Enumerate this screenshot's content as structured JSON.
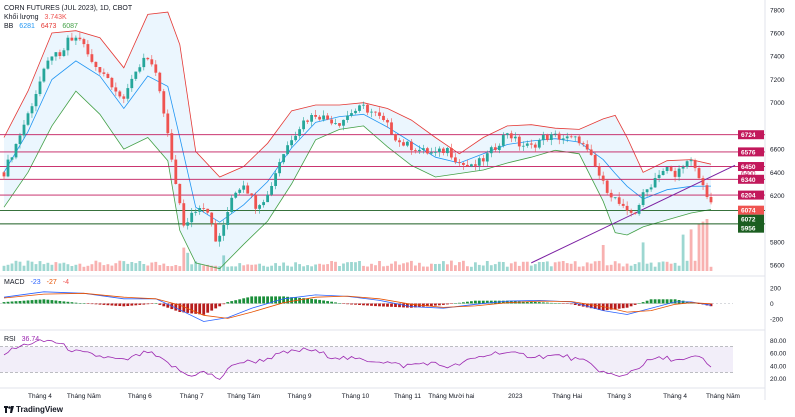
{
  "header": {
    "title": "CORN FUTURES (JUL 2023), 1D, CBOT",
    "volume_label": "Khối lượng",
    "volume_value": "3.743K",
    "bb_label": "BB",
    "bb_values": [
      "6281",
      "6473",
      "6087"
    ],
    "macd_label": "MACD",
    "macd_values": [
      "-23",
      "-27",
      "-4"
    ],
    "rsi_label": "RSI",
    "rsi_value": "36.74"
  },
  "branding": {
    "logo_text": "TradingView",
    "logo_icon": "tradingview-logo-icon"
  },
  "colors": {
    "up": "#26a69a",
    "down": "#ef5350",
    "bb_upper": "#e53935",
    "bb_lower": "#43a047",
    "bb_basis": "#2196f3",
    "bb_fill": "#e3f2fd",
    "resistance": "#c2185b",
    "support": "#1b5e20",
    "trendline": "#7b1fa2",
    "macd_line": "#2962ff",
    "signal_line": "#e65100",
    "rsi_line": "#9c27b0",
    "rsi_band": "#ede7f6"
  },
  "chart_data": {
    "type": "candlestick",
    "price_axis": {
      "min": 5550,
      "max": 7850,
      "ticks": [
        7800,
        7600,
        7400,
        7200,
        7000,
        6600,
        6400,
        6200,
        5800,
        5600
      ]
    },
    "price_path": [
      [
        0,
        6400
      ],
      [
        3,
        6640
      ],
      [
        6,
        6900
      ],
      [
        9,
        7180
      ],
      [
        12,
        7420
      ],
      [
        14,
        7380
      ],
      [
        16,
        7530
      ],
      [
        19,
        7560
      ],
      [
        22,
        7340
      ],
      [
        25,
        7260
      ],
      [
        28,
        7120
      ],
      [
        30,
        7000
      ],
      [
        32,
        7220
      ],
      [
        35,
        7380
      ],
      [
        38,
        7260
      ],
      [
        40,
        6900
      ],
      [
        43,
        6320
      ],
      [
        45,
        5920
      ],
      [
        47,
        6050
      ],
      [
        49,
        6120
      ],
      [
        51,
        6080
      ],
      [
        53,
        5800
      ],
      [
        55,
        5920
      ],
      [
        57,
        6200
      ],
      [
        60,
        6310
      ],
      [
        63,
        6120
      ],
      [
        66,
        6200
      ],
      [
        69,
        6500
      ],
      [
        72,
        6700
      ],
      [
        75,
        6840
      ],
      [
        78,
        6900
      ],
      [
        81,
        6860
      ],
      [
        84,
        6830
      ],
      [
        87,
        6920
      ],
      [
        90,
        6960
      ],
      [
        93,
        6900
      ],
      [
        96,
        6800
      ],
      [
        99,
        6660
      ],
      [
        102,
        6620
      ],
      [
        105,
        6580
      ],
      [
        108,
        6560
      ],
      [
        111,
        6600
      ],
      [
        114,
        6480
      ],
      [
        117,
        6440
      ],
      [
        120,
        6510
      ],
      [
        123,
        6620
      ],
      [
        126,
        6750
      ],
      [
        129,
        6640
      ],
      [
        132,
        6620
      ],
      [
        135,
        6700
      ],
      [
        138,
        6710
      ],
      [
        141,
        6690
      ],
      [
        144,
        6680
      ],
      [
        147,
        6520
      ],
      [
        150,
        6300
      ],
      [
        153,
        6170
      ],
      [
        156,
        6040
      ],
      [
        158,
        6060
      ],
      [
        160,
        6200
      ],
      [
        162,
        6300
      ],
      [
        164,
        6400
      ],
      [
        166,
        6430
      ],
      [
        168,
        6360
      ],
      [
        170,
        6480
      ],
      [
        172,
        6480
      ],
      [
        174,
        6350
      ],
      [
        176,
        6210
      ],
      [
        177,
        6150
      ]
    ],
    "bollinger": {
      "upper": [
        [
          0,
          6700
        ],
        [
          6,
          7100
        ],
        [
          12,
          7600
        ],
        [
          18,
          7620
        ],
        [
          24,
          7560
        ],
        [
          30,
          7300
        ],
        [
          36,
          7760
        ],
        [
          41,
          7780
        ],
        [
          44,
          7500
        ],
        [
          48,
          6580
        ],
        [
          54,
          6360
        ],
        [
          60,
          6450
        ],
        [
          66,
          6650
        ],
        [
          72,
          6930
        ],
        [
          78,
          6980
        ],
        [
          84,
          6980
        ],
        [
          90,
          7000
        ],
        [
          96,
          6950
        ],
        [
          102,
          6850
        ],
        [
          108,
          6700
        ],
        [
          114,
          6560
        ],
        [
          120,
          6700
        ],
        [
          126,
          6800
        ],
        [
          132,
          6810
        ],
        [
          138,
          6780
        ],
        [
          144,
          6770
        ],
        [
          150,
          6860
        ],
        [
          153,
          6890
        ],
        [
          156,
          6700
        ],
        [
          160,
          6400
        ],
        [
          166,
          6500
        ],
        [
          172,
          6510
        ],
        [
          177,
          6470
        ]
      ],
      "lower": [
        [
          0,
          6100
        ],
        [
          6,
          6400
        ],
        [
          12,
          6800
        ],
        [
          18,
          7100
        ],
        [
          24,
          6900
        ],
        [
          30,
          6600
        ],
        [
          36,
          6700
        ],
        [
          41,
          6500
        ],
        [
          44,
          5900
        ],
        [
          48,
          5620
        ],
        [
          54,
          5570
        ],
        [
          60,
          5780
        ],
        [
          66,
          5980
        ],
        [
          72,
          6300
        ],
        [
          78,
          6680
        ],
        [
          84,
          6770
        ],
        [
          90,
          6800
        ],
        [
          96,
          6620
        ],
        [
          102,
          6460
        ],
        [
          108,
          6360
        ],
        [
          114,
          6390
        ],
        [
          120,
          6420
        ],
        [
          126,
          6480
        ],
        [
          132,
          6530
        ],
        [
          138,
          6590
        ],
        [
          144,
          6560
        ],
        [
          150,
          6150
        ],
        [
          153,
          5880
        ],
        [
          156,
          5860
        ],
        [
          160,
          5930
        ],
        [
          166,
          5990
        ],
        [
          172,
          6050
        ],
        [
          177,
          6080
        ]
      ],
      "basis": [
        [
          0,
          6400
        ],
        [
          6,
          6750
        ],
        [
          12,
          7200
        ],
        [
          18,
          7360
        ],
        [
          24,
          7230
        ],
        [
          30,
          6950
        ],
        [
          36,
          7230
        ],
        [
          41,
          7140
        ],
        [
          44,
          6700
        ],
        [
          48,
          6100
        ],
        [
          54,
          5970
        ],
        [
          60,
          6120
        ],
        [
          66,
          6320
        ],
        [
          72,
          6610
        ],
        [
          78,
          6830
        ],
        [
          84,
          6880
        ],
        [
          90,
          6900
        ],
        [
          96,
          6790
        ],
        [
          102,
          6660
        ],
        [
          108,
          6530
        ],
        [
          114,
          6480
        ],
        [
          120,
          6560
        ],
        [
          126,
          6640
        ],
        [
          132,
          6670
        ],
        [
          138,
          6690
        ],
        [
          144,
          6660
        ],
        [
          150,
          6510
        ],
        [
          153,
          6390
        ],
        [
          156,
          6280
        ],
        [
          160,
          6170
        ],
        [
          166,
          6250
        ],
        [
          172,
          6280
        ],
        [
          177,
          6281
        ]
      ]
    },
    "horizontal_levels": [
      {
        "price": 6724,
        "label": "6724",
        "kind": "resistance"
      },
      {
        "price": 6576,
        "label": "6576",
        "kind": "resistance"
      },
      {
        "price": 6450,
        "label": "6450",
        "kind": "resistance"
      },
      {
        "price": 6340,
        "label": "6340",
        "kind": "resistance"
      },
      {
        "price": 6204,
        "label": "6204",
        "kind": "resistance"
      },
      {
        "price": 6074,
        "label": "6074",
        "kind": "current"
      },
      {
        "price": 6072,
        "label": "6072",
        "kind": "support"
      },
      {
        "price": 5956,
        "label": "5956",
        "kind": "support"
      }
    ],
    "extra_price_label": {
      "price": 6400,
      "label": "6400"
    },
    "trendline": [
      [
        132,
        5620
      ],
      [
        183,
        6460
      ]
    ],
    "time_axis": [
      {
        "bar": 9,
        "label": "Tháng 4"
      },
      {
        "bar": 20,
        "label": "Tháng Năm"
      },
      {
        "bar": 34,
        "label": "Tháng 6"
      },
      {
        "bar": 47,
        "label": "Tháng 7"
      },
      {
        "bar": 60,
        "label": "Tháng Tám"
      },
      {
        "bar": 74,
        "label": "Tháng 9"
      },
      {
        "bar": 88,
        "label": "Tháng 10"
      },
      {
        "bar": 101,
        "label": "Tháng 11"
      },
      {
        "bar": 112,
        "label": "Tháng Mười hai"
      },
      {
        "bar": 128,
        "label": "2023"
      },
      {
        "bar": 141,
        "label": "Tháng Hai"
      },
      {
        "bar": 154,
        "label": "Tháng 3"
      },
      {
        "bar": 168,
        "label": "Tháng 4"
      },
      {
        "bar": 180,
        "label": "Tháng Năm"
      }
    ],
    "volume_spikes": [
      [
        45,
        0.45
      ],
      [
        46,
        0.35
      ],
      [
        55,
        0.3
      ],
      [
        150,
        0.5
      ],
      [
        160,
        0.55
      ],
      [
        170,
        0.7
      ],
      [
        172,
        0.8
      ],
      [
        174,
        0.9
      ],
      [
        175,
        0.95
      ],
      [
        176,
        1.0
      ]
    ],
    "macd": {
      "axis": {
        "min": -300,
        "max": 300,
        "ticks": [
          200,
          0,
          -200
        ]
      },
      "line": [
        [
          0,
          80
        ],
        [
          10,
          150
        ],
        [
          20,
          130
        ],
        [
          30,
          60
        ],
        [
          38,
          60
        ],
        [
          44,
          -80
        ],
        [
          50,
          -230
        ],
        [
          56,
          -180
        ],
        [
          62,
          -60
        ],
        [
          70,
          60
        ],
        [
          78,
          110
        ],
        [
          86,
          90
        ],
        [
          94,
          40
        ],
        [
          102,
          -40
        ],
        [
          110,
          -60
        ],
        [
          118,
          -10
        ],
        [
          126,
          30
        ],
        [
          134,
          40
        ],
        [
          142,
          20
        ],
        [
          150,
          -90
        ],
        [
          156,
          -140
        ],
        [
          162,
          -60
        ],
        [
          168,
          20
        ],
        [
          172,
          20
        ],
        [
          177,
          -23
        ]
      ],
      "signal": [
        [
          0,
          70
        ],
        [
          10,
          120
        ],
        [
          20,
          130
        ],
        [
          30,
          80
        ],
        [
          38,
          60
        ],
        [
          44,
          -20
        ],
        [
          50,
          -150
        ],
        [
          56,
          -190
        ],
        [
          62,
          -110
        ],
        [
          70,
          10
        ],
        [
          78,
          80
        ],
        [
          86,
          95
        ],
        [
          94,
          60
        ],
        [
          102,
          -10
        ],
        [
          110,
          -50
        ],
        [
          118,
          -30
        ],
        [
          126,
          10
        ],
        [
          134,
          30
        ],
        [
          142,
          25
        ],
        [
          150,
          -40
        ],
        [
          156,
          -110
        ],
        [
          162,
          -90
        ],
        [
          168,
          -10
        ],
        [
          172,
          10
        ],
        [
          177,
          -4
        ]
      ]
    },
    "rsi": {
      "axis": {
        "min": 10,
        "max": 90,
        "ticks": [
          80,
          60,
          40,
          20
        ]
      },
      "band": [
        30,
        70
      ],
      "series": [
        [
          0,
          60
        ],
        [
          6,
          75
        ],
        [
          12,
          80
        ],
        [
          18,
          62
        ],
        [
          24,
          55
        ],
        [
          30,
          48
        ],
        [
          36,
          62
        ],
        [
          42,
          40
        ],
        [
          46,
          25
        ],
        [
          50,
          30
        ],
        [
          54,
          20
        ],
        [
          58,
          45
        ],
        [
          64,
          48
        ],
        [
          70,
          60
        ],
        [
          76,
          66
        ],
        [
          82,
          55
        ],
        [
          88,
          50
        ],
        [
          94,
          48
        ],
        [
          100,
          40
        ],
        [
          106,
          45
        ],
        [
          112,
          38
        ],
        [
          118,
          52
        ],
        [
          124,
          62
        ],
        [
          128,
          58
        ],
        [
          134,
          55
        ],
        [
          140,
          56
        ],
        [
          146,
          45
        ],
        [
          150,
          30
        ],
        [
          154,
          22
        ],
        [
          158,
          35
        ],
        [
          162,
          50
        ],
        [
          166,
          52
        ],
        [
          170,
          48
        ],
        [
          174,
          55
        ],
        [
          177,
          36.74
        ]
      ]
    }
  }
}
